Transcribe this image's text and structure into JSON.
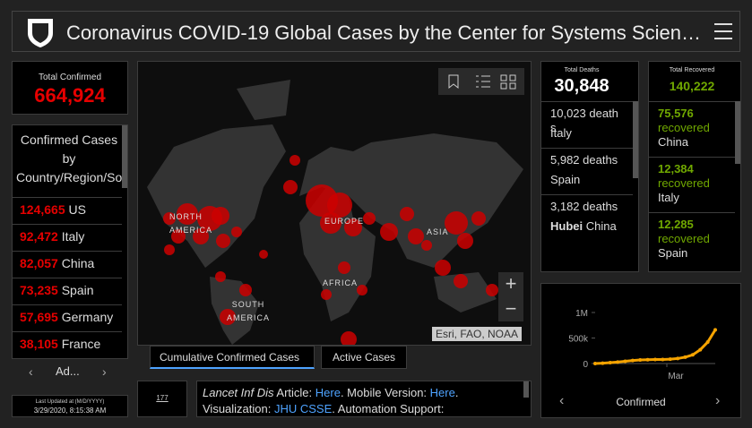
{
  "header": {
    "title": "Coronavirus COVID-19 Global Cases by the Center for Systems Scien…"
  },
  "total_confirmed": {
    "label": "Total Confirmed",
    "value": "664,924"
  },
  "confirmed_list": {
    "title": "Confirmed Cases by Country/Region/Sovereignty",
    "rows": [
      {
        "count": "124,665",
        "place": "US"
      },
      {
        "count": "92,472",
        "place": "Italy"
      },
      {
        "count": "82,057",
        "place": "China"
      },
      {
        "count": "73,235",
        "place": "Spain"
      },
      {
        "count": "57,695",
        "place": "Germany"
      },
      {
        "count": "38,105",
        "place": "France"
      }
    ],
    "nav_label": "Ad..."
  },
  "last_updated": {
    "label": "Last Updated at (M/D/YYYY)",
    "value": "3/29/2020, 8:15:38 AM"
  },
  "map": {
    "regions": [
      "NORTH AMERICA",
      "EUROPE",
      "ASIA",
      "AFRICA",
      "SOUTH AMERICA"
    ],
    "attribution": "Esri, FAO, NOAA",
    "zoom_in": "+",
    "zoom_out": "−"
  },
  "tabs": [
    "Cumulative Confirmed Cases",
    "Active Cases"
  ],
  "counter": "177",
  "info": {
    "line1": [
      "Lancet Inf Dis",
      " Article: ",
      "Here",
      ". Mobile Version: ",
      "Here",
      "."
    ],
    "line2": [
      "Visualization: ",
      "JHU CSSE",
      ". Automation Support:"
    ]
  },
  "deaths": {
    "label": "Total Deaths",
    "value": "30,848",
    "rows": [
      {
        "count": "10,023 deaths",
        "place": "Italy"
      },
      {
        "count": "5,982 deaths",
        "place": "Spain"
      },
      {
        "count": "3,182 deaths",
        "region": "Hubei",
        "place": "China"
      }
    ]
  },
  "recovered": {
    "label": "Total Recovered",
    "value": "140,222",
    "rows": [
      {
        "count": "75,576",
        "unit": "recovered",
        "place": "China"
      },
      {
        "count": "12,384",
        "unit": "recovered",
        "place": "Italy"
      },
      {
        "count": "12,285",
        "unit": "recovered",
        "place": "Spain"
      }
    ]
  },
  "chart_data": {
    "type": "line",
    "ylim": [
      0,
      1000000
    ],
    "yticks": [
      0,
      {
        "value": 500000,
        "label": "500k"
      },
      {
        "value": 1000000,
        "label": "1M"
      }
    ],
    "x_tick": "Mar",
    "label": "Confirmed",
    "color": "#f5a300",
    "values": [
      555,
      6000,
      17000,
      28000,
      43000,
      60000,
      71000,
      75000,
      78000,
      80000,
      86000,
      98000,
      125000,
      170000,
      270000,
      420000,
      660000
    ]
  }
}
